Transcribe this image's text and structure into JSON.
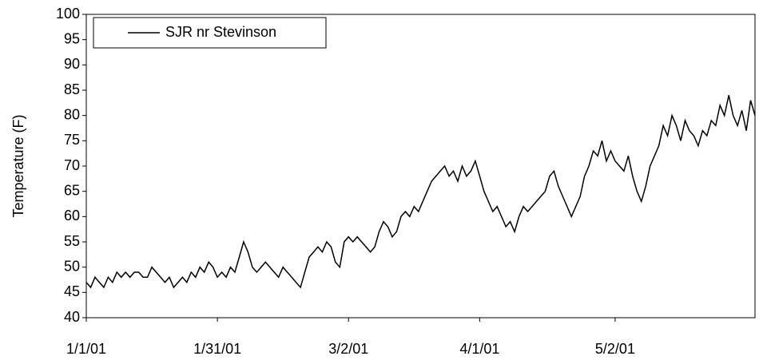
{
  "chart_data": {
    "type": "line",
    "ylabel": "Temperature (F)",
    "x": [
      "1/1/01",
      "1/2/01",
      "1/3/01",
      "1/4/01",
      "1/5/01",
      "1/6/01",
      "1/7/01",
      "1/8/01",
      "1/9/01",
      "1/10/01",
      "1/11/01",
      "1/12/01",
      "1/13/01",
      "1/14/01",
      "1/15/01",
      "1/16/01",
      "1/17/01",
      "1/18/01",
      "1/19/01",
      "1/20/01",
      "1/21/01",
      "1/22/01",
      "1/23/01",
      "1/24/01",
      "1/25/01",
      "1/26/01",
      "1/27/01",
      "1/28/01",
      "1/29/01",
      "1/30/01",
      "1/31/01",
      "2/1/01",
      "2/2/01",
      "2/3/01",
      "2/4/01",
      "2/5/01",
      "2/6/01",
      "2/7/01",
      "2/8/01",
      "2/9/01",
      "2/10/01",
      "2/11/01",
      "2/12/01",
      "2/13/01",
      "2/14/01",
      "2/15/01",
      "2/16/01",
      "2/17/01",
      "2/18/01",
      "2/19/01",
      "2/20/01",
      "2/21/01",
      "2/22/01",
      "2/23/01",
      "2/24/01",
      "2/25/01",
      "2/26/01",
      "2/27/01",
      "2/28/01",
      "3/1/01",
      "3/2/01",
      "3/3/01",
      "3/4/01",
      "3/5/01",
      "3/6/01",
      "3/7/01",
      "3/8/01",
      "3/9/01",
      "3/10/01",
      "3/11/01",
      "3/12/01",
      "3/13/01",
      "3/14/01",
      "3/15/01",
      "3/16/01",
      "3/17/01",
      "3/18/01",
      "3/19/01",
      "3/20/01",
      "3/21/01",
      "3/22/01",
      "3/23/01",
      "3/24/01",
      "3/25/01",
      "3/26/01",
      "3/27/01",
      "3/28/01",
      "3/29/01",
      "3/30/01",
      "3/31/01",
      "4/1/01",
      "4/2/01",
      "4/3/01",
      "4/4/01",
      "4/5/01",
      "4/6/01",
      "4/7/01",
      "4/8/01",
      "4/9/01",
      "4/10/01",
      "4/11/01",
      "4/12/01",
      "4/13/01",
      "4/14/01",
      "4/15/01",
      "4/16/01",
      "4/17/01",
      "4/18/01",
      "4/19/01",
      "4/20/01",
      "4/21/01",
      "4/22/01",
      "4/23/01",
      "4/24/01",
      "4/25/01",
      "4/26/01",
      "4/27/01",
      "4/28/01",
      "4/29/01",
      "4/30/01",
      "5/1/01",
      "5/2/01",
      "5/3/01",
      "5/4/01",
      "5/5/01",
      "5/6/01",
      "5/7/01",
      "5/8/01",
      "5/9/01",
      "5/10/01",
      "5/11/01",
      "5/12/01",
      "5/13/01",
      "5/14/01",
      "5/15/01",
      "5/16/01",
      "5/17/01",
      "5/18/01",
      "5/19/01",
      "5/20/01",
      "5/21/01",
      "5/22/01",
      "5/23/01",
      "5/24/01",
      "5/25/01",
      "5/26/01",
      "5/27/01",
      "5/28/01",
      "5/29/01",
      "5/30/01",
      "5/31/01",
      "6/1/01",
      "6/2/01",
      "6/3/01"
    ],
    "series": [
      {
        "name": "SJR nr Stevinson",
        "color": "#000000",
        "values": [
          47,
          46,
          48,
          47,
          46,
          48,
          47,
          49,
          48,
          49,
          48,
          49,
          49,
          48,
          48,
          50,
          49,
          48,
          47,
          48,
          46,
          47,
          48,
          47,
          49,
          48,
          50,
          49,
          51,
          50,
          48,
          49,
          48,
          50,
          49,
          52,
          55,
          53,
          50,
          49,
          50,
          51,
          50,
          49,
          48,
          50,
          49,
          48,
          47,
          46,
          49,
          52,
          53,
          54,
          53,
          55,
          54,
          51,
          50,
          55,
          56,
          55,
          56,
          55,
          54,
          53,
          54,
          57,
          59,
          58,
          56,
          57,
          60,
          61,
          60,
          62,
          61,
          63,
          65,
          67,
          68,
          69,
          70,
          68,
          69,
          67,
          70,
          68,
          69,
          71,
          68,
          65,
          63,
          61,
          62,
          60,
          58,
          59,
          57,
          60,
          62,
          61,
          62,
          63,
          64,
          65,
          68,
          69,
          66,
          64,
          62,
          60,
          62,
          64,
          68,
          70,
          73,
          72,
          75,
          71,
          73,
          71,
          70,
          69,
          72,
          68,
          65,
          63,
          66,
          70,
          72,
          74,
          78,
          76,
          80,
          78,
          75,
          79,
          77,
          76,
          74,
          77,
          76,
          79,
          78,
          82,
          80,
          84,
          80,
          78,
          81,
          77,
          83,
          80
        ]
      }
    ],
    "xlim": [
      "1/1/01",
      "6/3/01"
    ],
    "xticks": [
      "1/1/01",
      "1/31/01",
      "3/2/01",
      "4/1/01",
      "5/2/01"
    ],
    "ylim": [
      40,
      100
    ],
    "yticks": [
      40,
      45,
      50,
      55,
      60,
      65,
      70,
      75,
      80,
      85,
      90,
      95,
      100
    ],
    "grid": false,
    "legend": "upper left"
  }
}
